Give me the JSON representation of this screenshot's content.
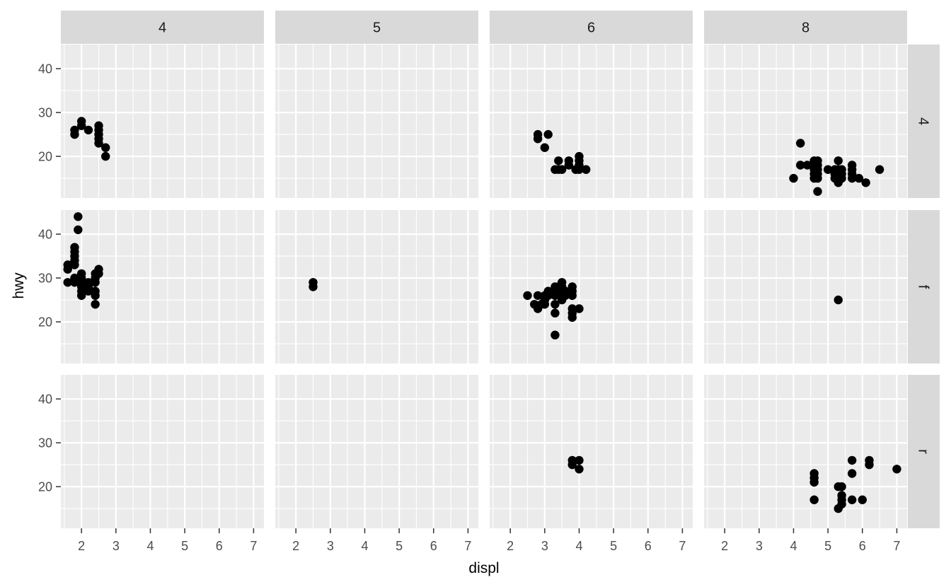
{
  "chart_data": {
    "type": "scatter",
    "xlabel": "displ",
    "ylabel": "hwy",
    "xlim": [
      1.4,
      7.3
    ],
    "ylim": [
      10.5,
      45.5
    ],
    "x_ticks": [
      2,
      3,
      4,
      5,
      6,
      7
    ],
    "y_ticks": [
      20,
      30,
      40
    ],
    "grid": true,
    "col_facets": [
      "4",
      "5",
      "6",
      "8"
    ],
    "row_facets": [
      "4",
      "f",
      "r"
    ],
    "point_color": "#000000",
    "panel_background": "#ebebeb",
    "strip_background": "#d9d9d9",
    "panels": [
      {
        "col": "4",
        "row": "4",
        "points": [
          [
            1.8,
            26
          ],
          [
            1.8,
            25
          ],
          [
            2.0,
            28
          ],
          [
            2.0,
            27
          ],
          [
            2.2,
            26
          ],
          [
            2.5,
            27
          ],
          [
            2.5,
            26
          ],
          [
            2.5,
            25
          ],
          [
            2.5,
            24
          ],
          [
            2.5,
            23
          ],
          [
            2.7,
            22
          ],
          [
            2.7,
            20
          ]
        ]
      },
      {
        "col": "5",
        "row": "4",
        "points": []
      },
      {
        "col": "6",
        "row": "4",
        "points": [
          [
            2.8,
            25
          ],
          [
            2.8,
            24
          ],
          [
            3.0,
            22
          ],
          [
            3.1,
            25
          ],
          [
            3.3,
            17
          ],
          [
            3.4,
            17
          ],
          [
            3.4,
            19
          ],
          [
            3.5,
            17
          ],
          [
            3.7,
            19
          ],
          [
            3.7,
            18
          ],
          [
            3.9,
            17
          ],
          [
            4.0,
            17
          ],
          [
            4.0,
            18
          ],
          [
            4.0,
            19
          ],
          [
            4.0,
            20
          ],
          [
            4.2,
            17
          ]
        ]
      },
      {
        "col": "8",
        "row": "4",
        "points": [
          [
            4.0,
            15
          ],
          [
            4.2,
            23
          ],
          [
            4.2,
            18
          ],
          [
            4.4,
            18
          ],
          [
            4.6,
            19
          ],
          [
            4.6,
            18
          ],
          [
            4.6,
            17
          ],
          [
            4.6,
            16
          ],
          [
            4.6,
            15
          ],
          [
            4.7,
            19
          ],
          [
            4.7,
            18
          ],
          [
            4.7,
            17
          ],
          [
            4.7,
            16
          ],
          [
            4.7,
            15
          ],
          [
            4.7,
            12
          ],
          [
            5.0,
            17
          ],
          [
            5.2,
            17
          ],
          [
            5.2,
            16
          ],
          [
            5.2,
            15
          ],
          [
            5.3,
            19
          ],
          [
            5.3,
            17
          ],
          [
            5.3,
            16
          ],
          [
            5.3,
            15
          ],
          [
            5.3,
            14
          ],
          [
            5.4,
            17
          ],
          [
            5.4,
            16
          ],
          [
            5.4,
            15
          ],
          [
            5.7,
            18
          ],
          [
            5.7,
            17
          ],
          [
            5.7,
            16
          ],
          [
            5.7,
            15
          ],
          [
            5.9,
            15
          ],
          [
            6.1,
            14
          ],
          [
            6.5,
            17
          ]
        ]
      },
      {
        "col": "4",
        "row": "f",
        "points": [
          [
            1.6,
            33
          ],
          [
            1.6,
            32
          ],
          [
            1.6,
            29
          ],
          [
            1.8,
            37
          ],
          [
            1.8,
            36
          ],
          [
            1.8,
            35
          ],
          [
            1.8,
            34
          ],
          [
            1.8,
            33
          ],
          [
            1.8,
            30
          ],
          [
            1.8,
            29
          ],
          [
            1.9,
            44
          ],
          [
            1.9,
            41
          ],
          [
            2.0,
            31
          ],
          [
            2.0,
            30
          ],
          [
            2.0,
            29
          ],
          [
            2.0,
            28
          ],
          [
            2.0,
            27
          ],
          [
            2.0,
            26
          ],
          [
            2.2,
            29
          ],
          [
            2.2,
            28
          ],
          [
            2.2,
            27
          ],
          [
            2.4,
            31
          ],
          [
            2.4,
            30
          ],
          [
            2.4,
            29
          ],
          [
            2.4,
            27
          ],
          [
            2.4,
            26
          ],
          [
            2.4,
            24
          ],
          [
            2.5,
            32
          ],
          [
            2.5,
            31
          ]
        ]
      },
      {
        "col": "5",
        "row": "f",
        "points": [
          [
            2.5,
            29
          ],
          [
            2.5,
            28
          ]
        ]
      },
      {
        "col": "6",
        "row": "f",
        "points": [
          [
            2.5,
            26
          ],
          [
            2.7,
            24
          ],
          [
            2.8,
            26
          ],
          [
            2.8,
            23
          ],
          [
            2.9,
            24
          ],
          [
            3.0,
            26
          ],
          [
            3.0,
            25
          ],
          [
            3.0,
            24
          ],
          [
            3.1,
            27
          ],
          [
            3.1,
            26
          ],
          [
            3.3,
            28
          ],
          [
            3.3,
            27
          ],
          [
            3.3,
            26
          ],
          [
            3.3,
            24
          ],
          [
            3.3,
            22
          ],
          [
            3.3,
            17
          ],
          [
            3.4,
            28
          ],
          [
            3.5,
            29
          ],
          [
            3.5,
            28
          ],
          [
            3.5,
            27
          ],
          [
            3.5,
            26
          ],
          [
            3.5,
            25
          ],
          [
            3.6,
            27
          ],
          [
            3.6,
            26
          ],
          [
            3.8,
            28
          ],
          [
            3.8,
            27
          ],
          [
            3.8,
            26
          ],
          [
            3.8,
            23
          ],
          [
            3.8,
            22
          ],
          [
            3.8,
            21
          ],
          [
            4.0,
            23
          ]
        ]
      },
      {
        "col": "8",
        "row": "f",
        "points": [
          [
            5.3,
            25
          ]
        ]
      },
      {
        "col": "4",
        "row": "r",
        "points": []
      },
      {
        "col": "5",
        "row": "r",
        "points": []
      },
      {
        "col": "6",
        "row": "r",
        "points": [
          [
            3.8,
            26
          ],
          [
            3.8,
            25
          ],
          [
            4.0,
            26
          ],
          [
            4.0,
            24
          ]
        ]
      },
      {
        "col": "8",
        "row": "r",
        "points": [
          [
            4.6,
            23
          ],
          [
            4.6,
            22
          ],
          [
            4.6,
            21
          ],
          [
            4.6,
            17
          ],
          [
            5.3,
            20
          ],
          [
            5.3,
            15
          ],
          [
            5.4,
            20
          ],
          [
            5.4,
            18
          ],
          [
            5.4,
            17
          ],
          [
            5.4,
            16
          ],
          [
            5.7,
            26
          ],
          [
            5.7,
            23
          ],
          [
            5.7,
            17
          ],
          [
            6.0,
            17
          ],
          [
            6.2,
            26
          ],
          [
            6.2,
            25
          ],
          [
            7.0,
            24
          ]
        ]
      }
    ]
  }
}
